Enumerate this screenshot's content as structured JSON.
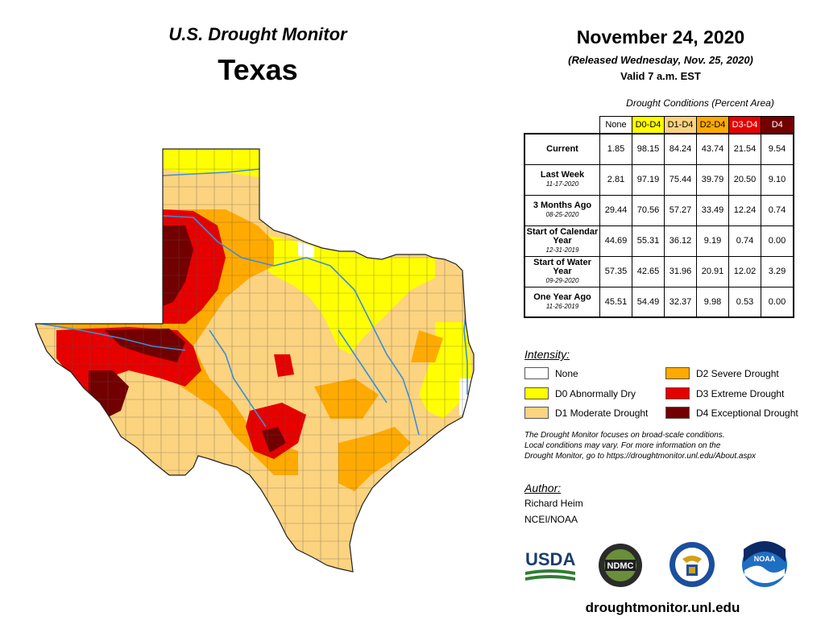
{
  "header": {
    "title": "U.S. Drought Monitor",
    "state": "Texas",
    "date": "November 24, 2020",
    "released": "(Released Wednesday, Nov. 25, 2020)",
    "valid": "Valid 7 a.m. EST"
  },
  "table": {
    "caption": "Drought Conditions (Percent Area)",
    "columns": [
      "None",
      "D0-D4",
      "D1-D4",
      "D2-D4",
      "D3-D4",
      "D4"
    ],
    "column_colors": [
      "#ffffff",
      "#ffff00",
      "#fcd37f",
      "#ffaa00",
      "#e60000",
      "#730000"
    ],
    "rows": [
      {
        "label": "Current",
        "sub": "",
        "values": [
          "1.85",
          "98.15",
          "84.24",
          "43.74",
          "21.54",
          "9.54"
        ]
      },
      {
        "label": "Last Week",
        "sub": "11-17-2020",
        "values": [
          "2.81",
          "97.19",
          "75.44",
          "39.79",
          "20.50",
          "9.10"
        ]
      },
      {
        "label": "3 Months Ago",
        "sub": "08-25-2020",
        "values": [
          "29.44",
          "70.56",
          "57.27",
          "33.49",
          "12.24",
          "0.74"
        ]
      },
      {
        "label": "Start of Calendar Year",
        "sub": "12-31-2019",
        "values": [
          "44.69",
          "55.31",
          "36.12",
          "9.19",
          "0.74",
          "0.00"
        ]
      },
      {
        "label": "Start of Water Year",
        "sub": "09-29-2020",
        "values": [
          "57.35",
          "42.65",
          "31.96",
          "20.91",
          "12.02",
          "3.29"
        ]
      },
      {
        "label": "One Year Ago",
        "sub": "11-26-2019",
        "values": [
          "45.51",
          "54.49",
          "32.37",
          "9.98",
          "0.53",
          "0.00"
        ]
      }
    ]
  },
  "legend": {
    "title": "Intensity:",
    "items": [
      {
        "label": "None",
        "color": "#ffffff"
      },
      {
        "label": "D0 Abnormally Dry",
        "color": "#ffff00"
      },
      {
        "label": "D1 Moderate Drought",
        "color": "#fcd37f"
      },
      {
        "label": "D2 Severe Drought",
        "color": "#ffaa00"
      },
      {
        "label": "D3 Extreme Drought",
        "color": "#e60000"
      },
      {
        "label": "D4 Exceptional Drought",
        "color": "#730000"
      }
    ]
  },
  "note": {
    "line1": "The Drought Monitor focuses on broad-scale conditions.",
    "line2": "Local conditions may vary. For more information on the",
    "line3": "Drought Monitor, go to https://droughtmonitor.unl.edu/About.aspx"
  },
  "author": {
    "label": "Author:",
    "name": "Richard Heim",
    "org": "NCEI/NOAA"
  },
  "logos": {
    "usda": "USDA",
    "ndmc": "NDMC",
    "noaa": "NOAA"
  },
  "footer": {
    "site": "droughtmonitor.unl.edu"
  },
  "colors": {
    "river": "#3a8fd8",
    "county_line": "#555555"
  }
}
